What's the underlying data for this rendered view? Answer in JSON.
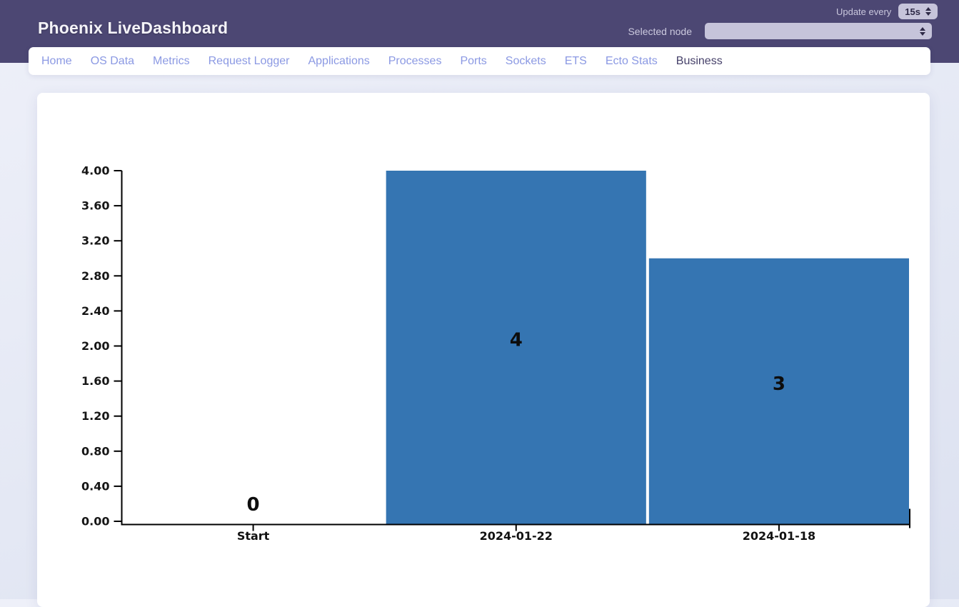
{
  "header": {
    "title": "Phoenix LiveDashboard",
    "update_every_label": "Update every",
    "update_interval_value": "15s",
    "selected_node_label": "Selected node",
    "selected_node_value": ""
  },
  "nav": {
    "tabs": [
      {
        "label": "Home",
        "active": false
      },
      {
        "label": "OS Data",
        "active": false
      },
      {
        "label": "Metrics",
        "active": false
      },
      {
        "label": "Request Logger",
        "active": false
      },
      {
        "label": "Applications",
        "active": false
      },
      {
        "label": "Processes",
        "active": false
      },
      {
        "label": "Ports",
        "active": false
      },
      {
        "label": "Sockets",
        "active": false
      },
      {
        "label": "ETS",
        "active": false
      },
      {
        "label": "Ecto Stats",
        "active": false
      },
      {
        "label": "Business",
        "active": true
      }
    ]
  },
  "chart_data": {
    "type": "bar",
    "title": "",
    "xlabel": "",
    "ylabel": "",
    "categories": [
      "Start",
      "2024-01-22",
      "2024-01-18"
    ],
    "values": [
      0,
      4,
      3
    ],
    "bar_labels": [
      "0",
      "4",
      "3"
    ],
    "ylim": [
      0,
      4
    ],
    "ytick_step": 0.4,
    "ytick_decimals": 2,
    "grid": false,
    "legend": "none",
    "bar_color": "#3575b2"
  },
  "colors": {
    "header_bg": "#4c4773",
    "tab_link": "#8b99e3",
    "tab_active": "#46416a",
    "bar": "#3575b2",
    "select_bg": "#c6c4da"
  }
}
